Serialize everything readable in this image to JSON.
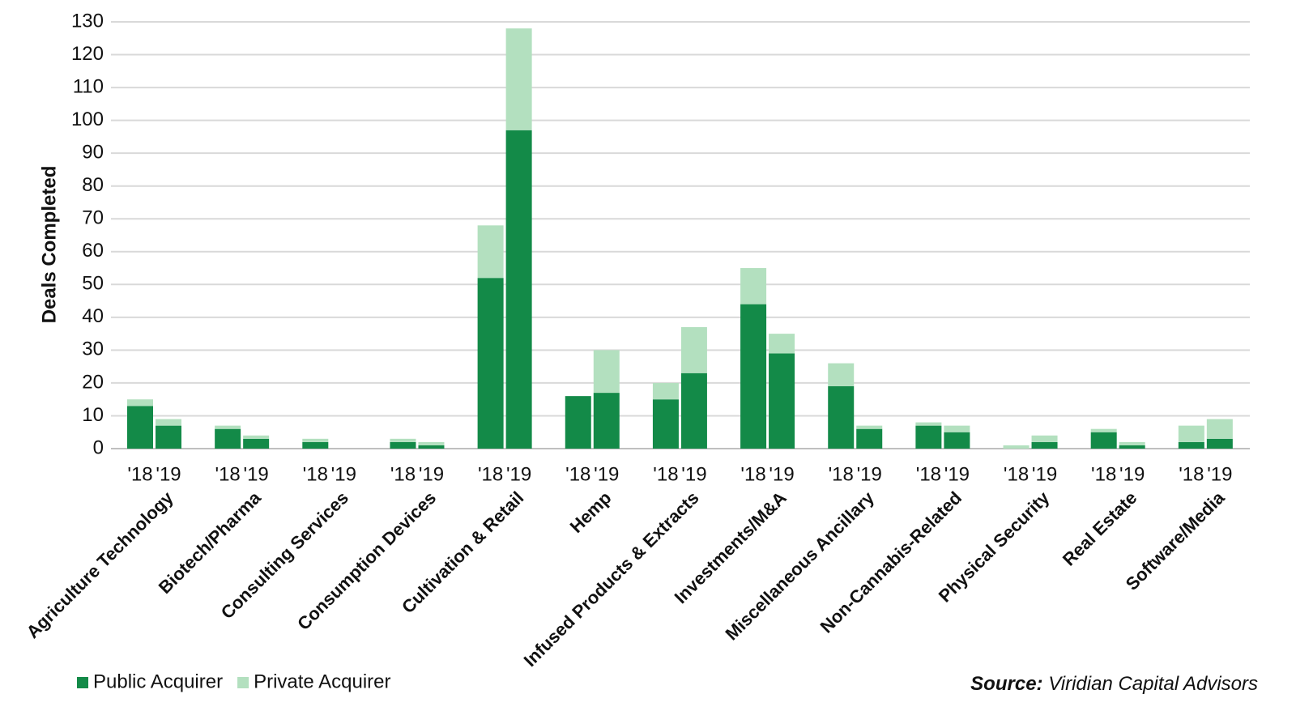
{
  "chart_data": {
    "type": "grouped-stacked-bar",
    "y_label": "Deals Completed",
    "categories": [
      "Agriculture Technology",
      "Biotech/Pharma",
      "Consulting Services",
      "Consumption Devices",
      "Cultivation & Retail",
      "Hemp",
      "Infused Products & Extracts",
      "Investments/M&A",
      "Miscellaneous Ancillary",
      "Non-Cannabis-Related",
      "Physical Security",
      "Real Estate",
      "Software/Media"
    ],
    "groups": [
      "'18",
      "'19"
    ],
    "series": [
      {
        "name": "Public Acquirer",
        "color": "#138a48",
        "values": [
          [
            13,
            7
          ],
          [
            6,
            3
          ],
          [
            2,
            0
          ],
          [
            2,
            1
          ],
          [
            52,
            97
          ],
          [
            16,
            17
          ],
          [
            15,
            23
          ],
          [
            44,
            29
          ],
          [
            19,
            6
          ],
          [
            7,
            5
          ],
          [
            0,
            2
          ],
          [
            5,
            1
          ],
          [
            2,
            3
          ]
        ]
      },
      {
        "name": "Private Acquirer",
        "color": "#b3e0bf",
        "values": [
          [
            2,
            2
          ],
          [
            1,
            1
          ],
          [
            1,
            0
          ],
          [
            1,
            1
          ],
          [
            16,
            31
          ],
          [
            0,
            13
          ],
          [
            5,
            14
          ],
          [
            11,
            6
          ],
          [
            7,
            1
          ],
          [
            1,
            2
          ],
          [
            1,
            2
          ],
          [
            1,
            1
          ],
          [
            5,
            6
          ]
        ]
      }
    ],
    "ylim": [
      0,
      130
    ],
    "yticks": [
      0,
      10,
      20,
      30,
      40,
      50,
      60,
      70,
      80,
      90,
      100,
      110,
      120,
      130
    ],
    "grid": true,
    "source_label": "Source:",
    "source": "Viridian Capital Advisors"
  }
}
